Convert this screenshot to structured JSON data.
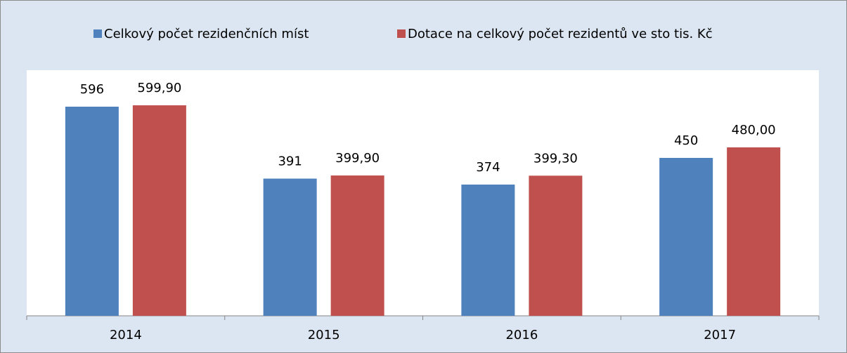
{
  "chart_data": {
    "type": "bar",
    "categories": [
      "2014",
      "2015",
      "2016",
      "2017"
    ],
    "series": [
      {
        "name": "Celkový počet rezidenčních míst",
        "color": "#4f81bd",
        "values": [
          596,
          391,
          374,
          450
        ]
      },
      {
        "name": "Dotace na celkový počet rezidentů ve sto tis. Kč",
        "color": "#c0504d",
        "values": [
          599.9,
          399.9,
          399.3,
          480.0
        ],
        "value_labels": [
          "599,90",
          "399,90",
          "399,30",
          "480,00"
        ]
      }
    ],
    "ylim": [
      0,
      700
    ],
    "legend": "top"
  }
}
